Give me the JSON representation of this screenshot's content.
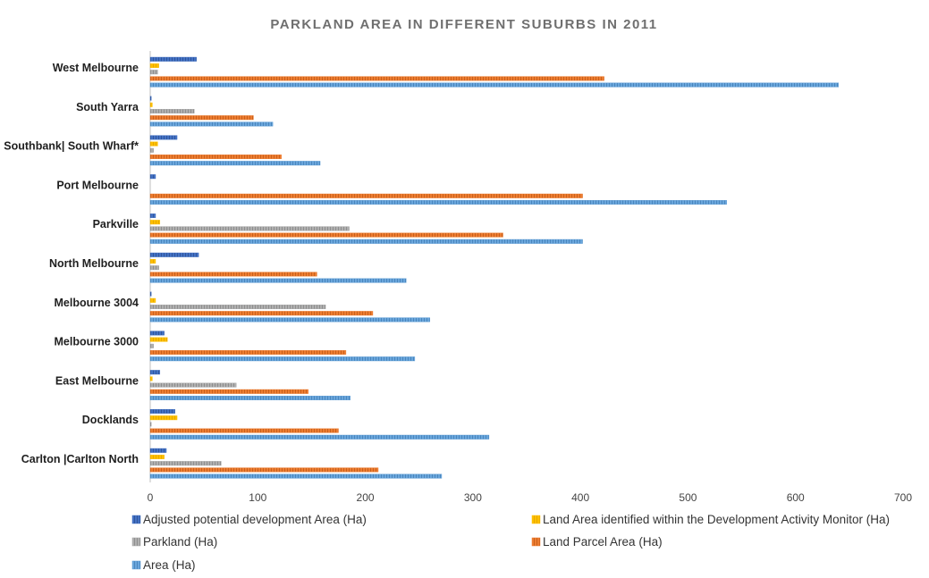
{
  "chart_data": {
    "type": "bar",
    "orientation": "horizontal",
    "title": "PARKLAND AREA IN DIFFERENT SUBURBS IN 2011",
    "xlabel": "",
    "ylabel": "",
    "xlim": [
      0,
      700
    ],
    "xticks": [
      0,
      100,
      200,
      300,
      400,
      500,
      600,
      700
    ],
    "grid": false,
    "legend_position": "bottom",
    "categories": [
      "West Melbourne",
      "South Yarra",
      "Southbank| South Wharf*",
      "Port Melbourne",
      "Parkville",
      "North Melbourne",
      "Melbourne 3004",
      "Melbourne 3000",
      "East Melbourne",
      "Docklands",
      "Carlton |Carlton North"
    ],
    "series": [
      {
        "name": "Adjusted potential development Area (Ha)",
        "color": "#4472c4",
        "values": [
          43,
          1,
          25,
          5,
          5,
          45,
          1,
          13,
          9,
          23,
          15
        ]
      },
      {
        "name": "Land Area identified within the Development Activity Monitor (Ha)",
        "color": "#ffc000",
        "values": [
          8,
          2,
          7,
          0,
          9,
          5,
          5,
          16,
          2,
          25,
          13
        ]
      },
      {
        "name": "Parkland (Ha)",
        "color": "#a5a5a5",
        "values": [
          7,
          41,
          3,
          0,
          185,
          8,
          163,
          3,
          80,
          1,
          66
        ]
      },
      {
        "name": "Land Parcel Area (Ha)",
        "color": "#ed7d31",
        "values": [
          422,
          96,
          122,
          402,
          328,
          155,
          207,
          182,
          147,
          175,
          212
        ]
      },
      {
        "name": "Area (Ha)",
        "color": "#5b9bd5",
        "values": [
          640,
          114,
          158,
          536,
          402,
          238,
          260,
          246,
          186,
          315,
          271
        ]
      }
    ]
  }
}
